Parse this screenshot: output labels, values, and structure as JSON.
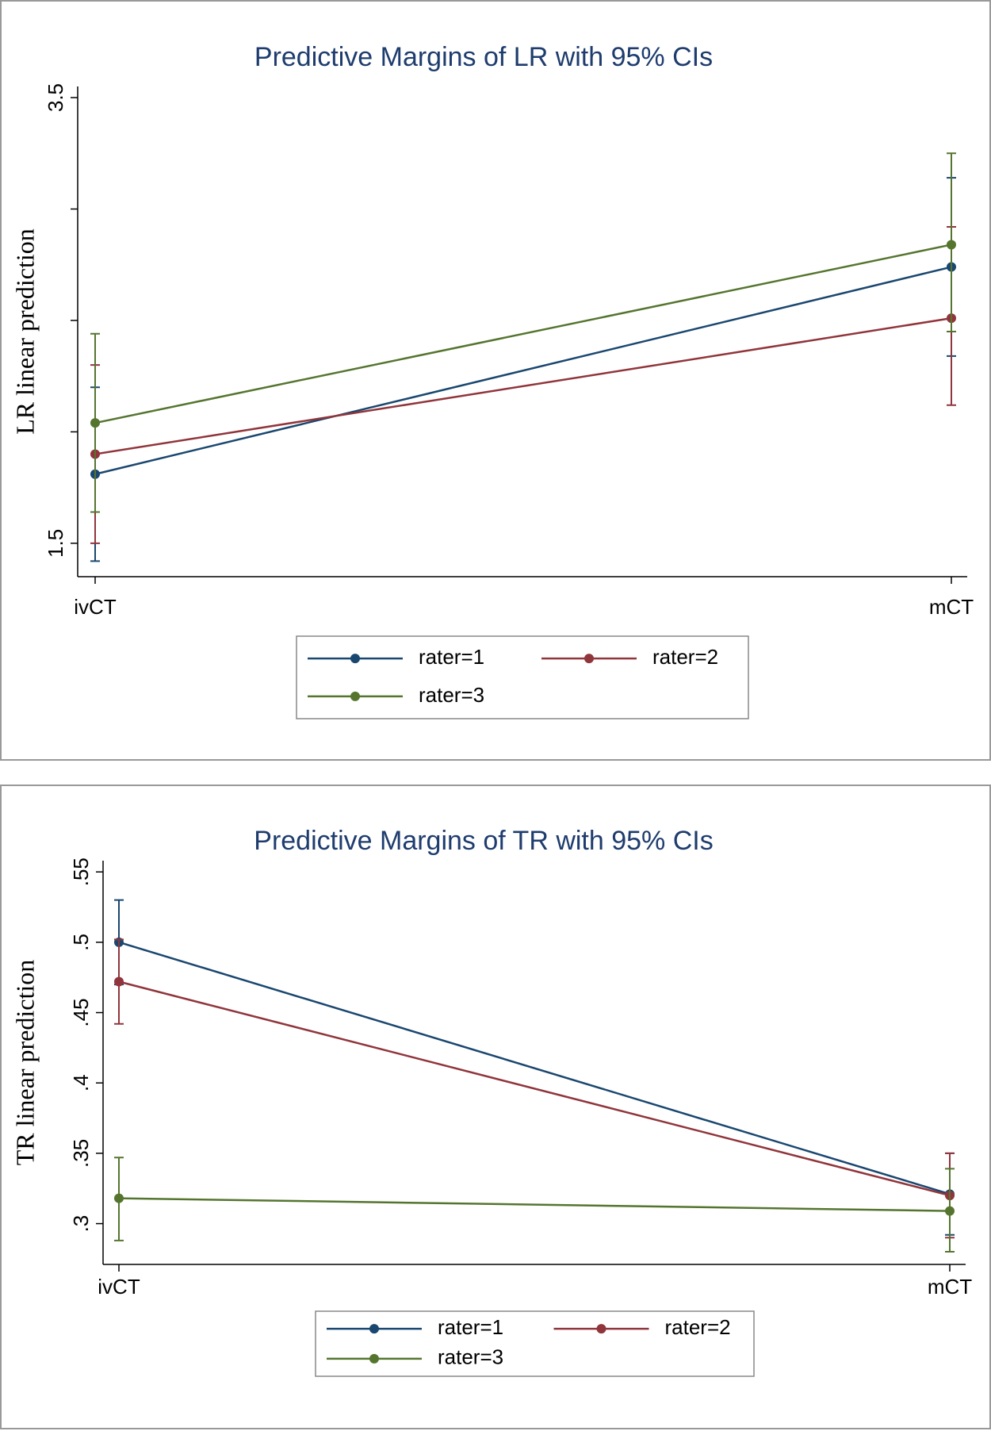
{
  "chart_data": [
    {
      "type": "line",
      "title": "Predictive Margins of LR with 95% CIs",
      "y_label": "LR linear prediction",
      "categories": [
        "ivCT",
        "mCT"
      ],
      "series": [
        {
          "name": "rater=1",
          "color": "#1a476f",
          "values": [
            1.81,
            2.74
          ],
          "lower": [
            1.42,
            2.34
          ],
          "upper": [
            2.2,
            3.14
          ]
        },
        {
          "name": "rater=2",
          "color": "#90353b",
          "values": [
            1.9,
            2.51
          ],
          "lower": [
            1.5,
            2.12
          ],
          "upper": [
            2.3,
            2.92
          ]
        },
        {
          "name": "rater=3",
          "color": "#55752f",
          "values": [
            2.04,
            2.84
          ],
          "lower": [
            1.64,
            2.45
          ],
          "upper": [
            2.44,
            3.25
          ]
        }
      ],
      "ylim": [
        1.35,
        3.55
      ],
      "yticks": [
        1.5,
        3.5
      ],
      "yminor": [
        2,
        2.5,
        3
      ],
      "legend": "bottom"
    },
    {
      "type": "line",
      "title": "Predictive Margins of TR with 95% CIs",
      "y_label": "TR linear prediction",
      "categories": [
        "ivCT",
        "mCT"
      ],
      "series": [
        {
          "name": "rater=1",
          "color": "#1a476f",
          "values": [
            0.5,
            0.321
          ],
          "lower": [
            0.47,
            0.292
          ],
          "upper": [
            0.53,
            0.35
          ]
        },
        {
          "name": "rater=2",
          "color": "#90353b",
          "values": [
            0.472,
            0.32
          ],
          "lower": [
            0.442,
            0.29
          ],
          "upper": [
            0.502,
            0.35
          ]
        },
        {
          "name": "rater=3",
          "color": "#55752f",
          "values": [
            0.318,
            0.309
          ],
          "lower": [
            0.288,
            0.28
          ],
          "upper": [
            0.347,
            0.339
          ]
        }
      ],
      "ylim": [
        0.271,
        0.558
      ],
      "yticks": [
        {
          "value": 0.3,
          "label": ".3"
        },
        {
          "value": 0.35,
          "label": ".35"
        },
        {
          "value": 0.4,
          "label": ".4"
        },
        {
          "value": 0.45,
          "label": ".45"
        },
        {
          "value": 0.5,
          "label": ".5"
        },
        {
          "value": 0.55,
          "label": ".55"
        }
      ],
      "legend": "bottom"
    }
  ]
}
